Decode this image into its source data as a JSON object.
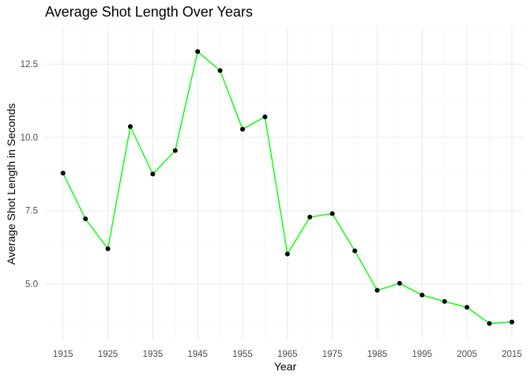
{
  "chart_data": {
    "type": "line",
    "title": "Average Shot Length Over Years",
    "xlabel": "Year",
    "ylabel": "Average Shot Length in Seconds",
    "x": [
      1915,
      1920,
      1925,
      1930,
      1935,
      1940,
      1945,
      1950,
      1955,
      1960,
      1965,
      1970,
      1975,
      1980,
      1985,
      1990,
      1995,
      2000,
      2005,
      2010,
      2015
    ],
    "series": [
      {
        "values": [
          8.78,
          7.22,
          6.2,
          10.37,
          8.75,
          9.55,
          12.93,
          12.28,
          10.28,
          10.7,
          6.02,
          7.28,
          7.4,
          6.13,
          4.78,
          5.02,
          4.62,
          4.4,
          4.2,
          3.65,
          3.7
        ],
        "line_color": "#00ff00",
        "point_color": "#000000"
      }
    ],
    "xticks": [
      1915,
      1925,
      1935,
      1945,
      1955,
      1965,
      1975,
      1985,
      1995,
      2005,
      2015
    ],
    "xtick_labels": [
      "1915",
      "1925",
      "1935",
      "1945",
      "1955",
      "1965",
      "1975",
      "1985",
      "1995",
      "2005",
      "2015"
    ],
    "yticks": [
      5.0,
      7.5,
      10.0,
      12.5
    ],
    "ytick_labels": [
      "5.0",
      "7.5",
      "10.0",
      "12.5"
    ],
    "xlim": [
      1911,
      2017.5
    ],
    "ylim": [
      3.1,
      13.8
    ],
    "grid": true,
    "legend": "none"
  }
}
